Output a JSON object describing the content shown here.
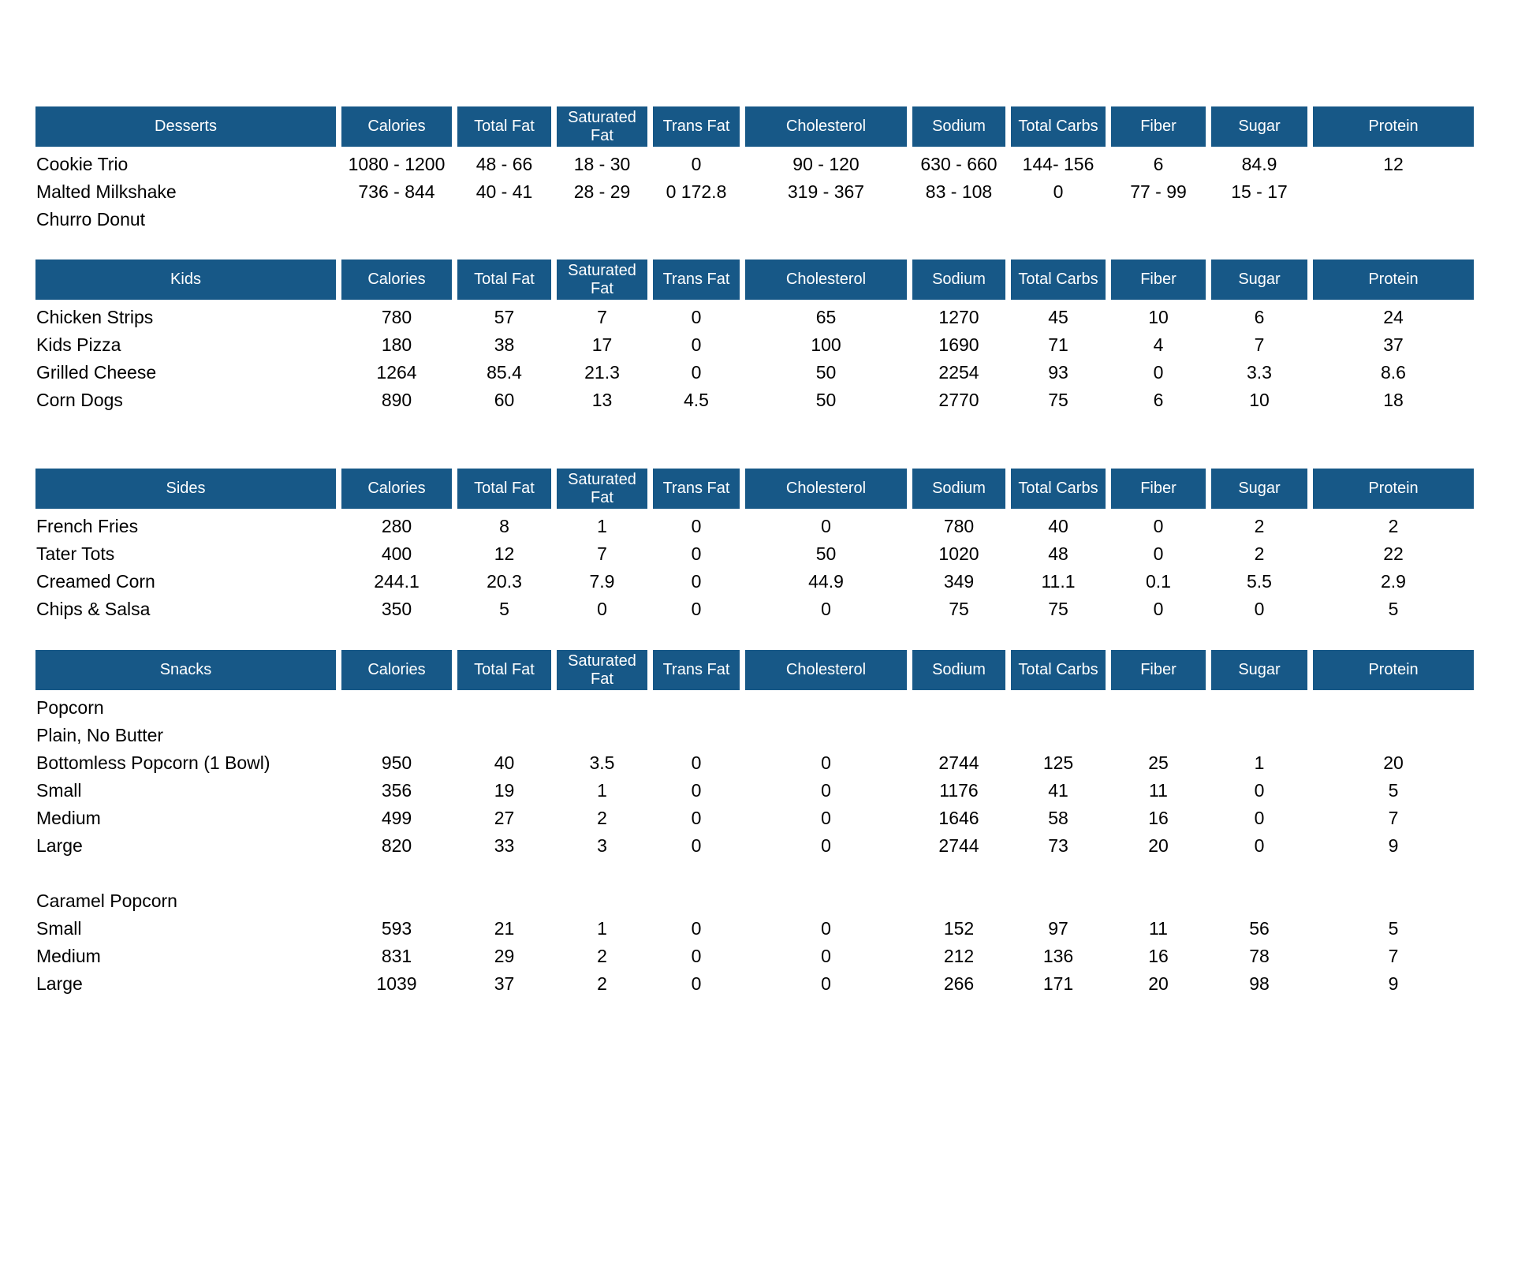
{
  "theme": {
    "header_bg": "#175887",
    "header_text": "#ffffff",
    "body_text": "#000000"
  },
  "columns": [
    "Calories",
    "Total Fat",
    "Saturated Fat",
    "Trans Fat",
    "Cholesterol",
    "Sodium",
    "Total Carbs",
    "Fiber",
    "Sugar",
    "Protein"
  ],
  "tables": [
    {
      "category": "Desserts",
      "rows": [
        {
          "name": "Cookie Trio",
          "values": [
            "1080 - 1200",
            "48 - 66",
            "18 - 30",
            "0",
            "90 - 120",
            "630 - 660",
            "144- 156",
            "6",
            "84.9",
            "12"
          ]
        },
        {
          "name": "Malted Milkshake",
          "values": [
            "736 - 844",
            "40 - 41",
            "28 - 29",
            "0 172.8",
            "319 - 367",
            "83 - 108",
            "0",
            "77 - 99",
            "15 - 17",
            ""
          ]
        },
        {
          "name": "Churro Donut",
          "values": [
            "",
            "",
            "",
            "",
            "",
            "",
            "",
            "",
            "",
            ""
          ]
        }
      ]
    },
    {
      "category": "Kids",
      "rows": [
        {
          "name": "Chicken Strips",
          "values": [
            "780",
            "57",
            "7",
            "0",
            "65",
            "1270",
            "45",
            "10",
            "6",
            "24"
          ]
        },
        {
          "name": "Kids Pizza",
          "values": [
            "180",
            "38",
            "17",
            "0",
            "100",
            "1690",
            "71",
            "4",
            "7",
            "37"
          ]
        },
        {
          "name": "Grilled Cheese",
          "values": [
            "1264",
            "85.4",
            "21.3",
            "0",
            "50",
            "2254",
            "93",
            "0",
            "3.3",
            "8.6"
          ]
        },
        {
          "name": "Corn Dogs",
          "values": [
            "890",
            "60",
            "13",
            "4.5",
            "50",
            "2770",
            "75",
            "6",
            "10",
            "18"
          ]
        }
      ]
    },
    {
      "category": "Sides",
      "rows": [
        {
          "name": "French Fries",
          "values": [
            "280",
            "8",
            "1",
            "0",
            "0",
            "780",
            "40",
            "0",
            "2",
            "2"
          ]
        },
        {
          "name": "Tater Tots",
          "values": [
            "400",
            "12",
            "7",
            "0",
            "50",
            "1020",
            "48",
            "0",
            "2",
            "22"
          ]
        },
        {
          "name": "Creamed Corn",
          "values": [
            "244.1",
            "20.3",
            "7.9",
            "0",
            "44.9",
            "349",
            "11.1",
            "0.1",
            "5.5",
            "2.9"
          ]
        },
        {
          "name": "Chips & Salsa",
          "values": [
            "350",
            "5",
            "0",
            "0",
            "0",
            "75",
            "75",
            "0",
            "0",
            "5"
          ]
        }
      ]
    },
    {
      "category": "Snacks",
      "rows": [
        {
          "name": "Popcorn",
          "values": [
            "",
            "",
            "",
            "",
            "",
            "",
            "",
            "",
            "",
            ""
          ]
        },
        {
          "name": "Plain, No Butter",
          "values": [
            "",
            "",
            "",
            "",
            "",
            "",
            "",
            "",
            "",
            ""
          ]
        },
        {
          "name": "Bottomless Popcorn (1 Bowl)",
          "values": [
            "950",
            "40",
            "3.5",
            "0",
            "0",
            "2744",
            "125",
            "25",
            "1",
            "20"
          ]
        },
        {
          "name": "Small",
          "values": [
            "356",
            "19",
            "1",
            "0",
            "0",
            "1176",
            "41",
            "11",
            "0",
            "5"
          ]
        },
        {
          "name": "Medium",
          "values": [
            "499",
            "27",
            "2",
            "0",
            "0",
            "1646",
            "58",
            "16",
            "0",
            "7"
          ]
        },
        {
          "name": "Large",
          "values": [
            "820",
            "33",
            "3",
            "0",
            "0",
            "2744",
            "73",
            "20",
            "0",
            "9"
          ]
        },
        {
          "name": "",
          "values": [
            "",
            "",
            "",
            "",
            "",
            "",
            "",
            "",
            "",
            ""
          ]
        },
        {
          "name": "Caramel Popcorn",
          "values": [
            "",
            "",
            "",
            "",
            "",
            "",
            "",
            "",
            "",
            ""
          ]
        },
        {
          "name": "Small",
          "values": [
            "593",
            "21",
            "1",
            "0",
            "0",
            "152",
            "97",
            "11",
            "56",
            "5"
          ]
        },
        {
          "name": "Medium",
          "values": [
            "831",
            "29",
            "2",
            "0",
            "0",
            "212",
            "136",
            "16",
            "78",
            "7"
          ]
        },
        {
          "name": "Large",
          "values": [
            "1039",
            "37",
            "2",
            "0",
            "0",
            "266",
            "171",
            "20",
            "98",
            "9"
          ]
        }
      ]
    }
  ]
}
